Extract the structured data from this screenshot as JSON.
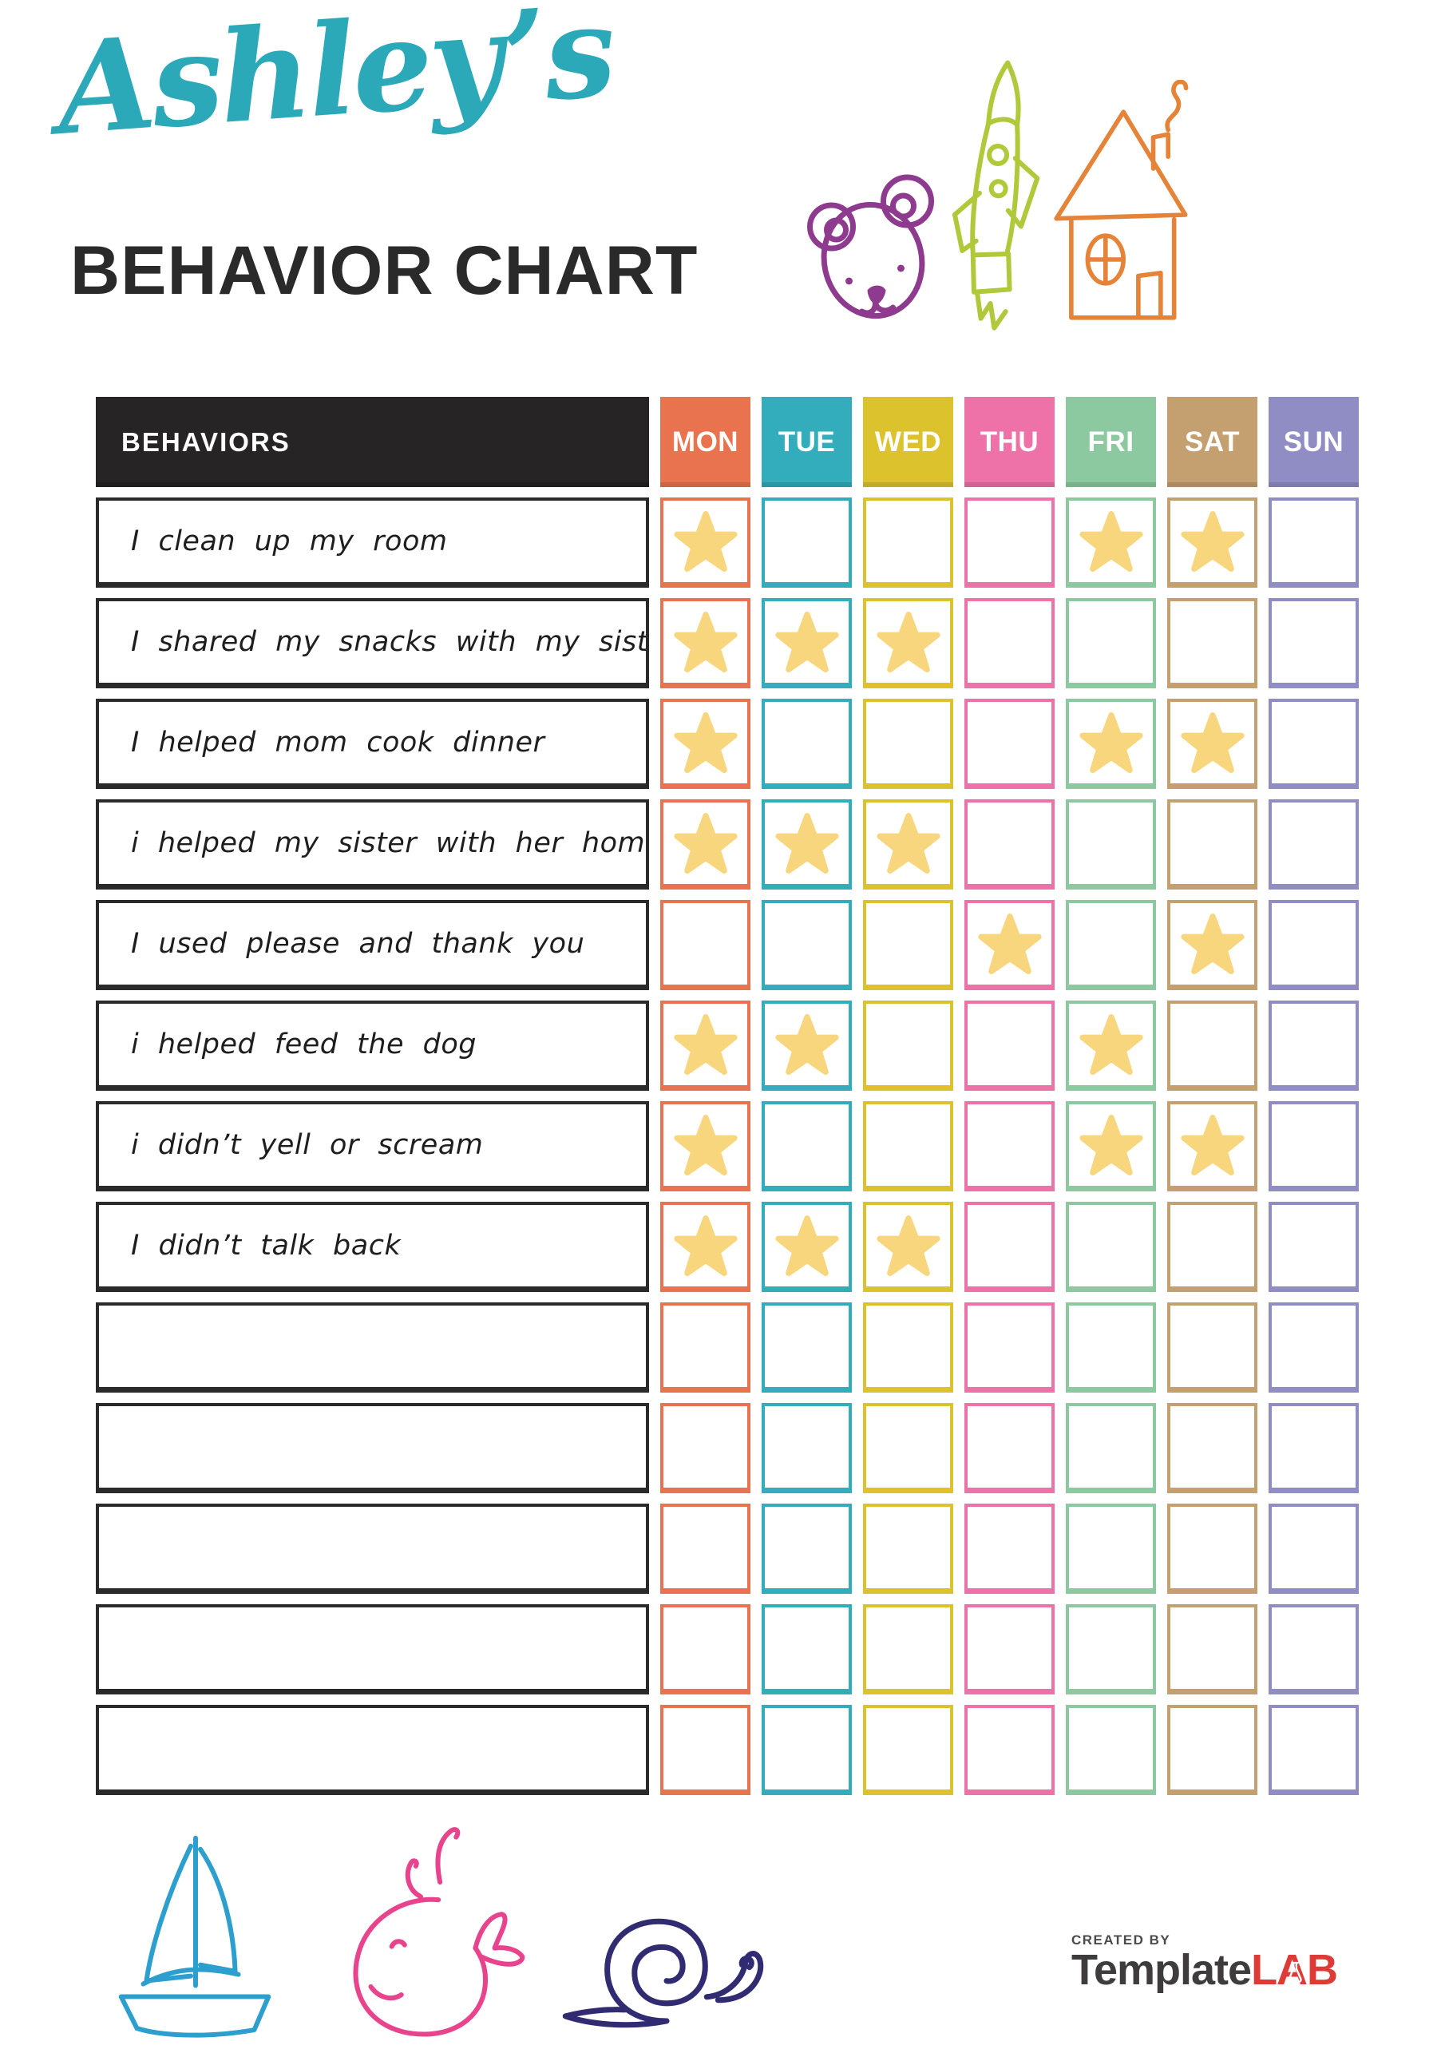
{
  "page": {
    "title_script": "Ashley’s",
    "title_main": "BEHAVIOR CHART"
  },
  "colors": {
    "title_teal": "#2BA9B8",
    "heading_dark": "#2B2A2A",
    "header_bg": "#262424",
    "star_gold": "#F7D67E",
    "behavior_border": "#2B2A2A"
  },
  "table": {
    "behaviors_header": "BEHAVIORS",
    "days": [
      {
        "label": "MON",
        "color": "#E8734E"
      },
      {
        "label": "TUE",
        "color": "#33ACBB"
      },
      {
        "label": "WED",
        "color": "#DCC32E"
      },
      {
        "label": "THU",
        "color": "#EE72A7"
      },
      {
        "label": "FRI",
        "color": "#8CC9A0"
      },
      {
        "label": "SAT",
        "color": "#C49F6F"
      },
      {
        "label": "SUN",
        "color": "#8F8DC4"
      }
    ],
    "rows": [
      {
        "behavior": "I clean up my room",
        "stars": [
          "MON",
          "FRI",
          "SAT"
        ]
      },
      {
        "behavior": "I shared my snacks with my sister",
        "stars": [
          "MON",
          "TUE",
          "WED"
        ]
      },
      {
        "behavior": "I helped mom cook dinner",
        "stars": [
          "MON",
          "FRI",
          "SAT"
        ]
      },
      {
        "behavior": "i helped my sister with her homework",
        "stars": [
          "MON",
          "TUE",
          "WED"
        ]
      },
      {
        "behavior": "I used please and thank you",
        "stars": [
          "THU",
          "SAT"
        ]
      },
      {
        "behavior": "i helped feed the dog",
        "stars": [
          "MON",
          "TUE",
          "FRI"
        ]
      },
      {
        "behavior": "i didn’t yell or scream",
        "stars": [
          "MON",
          "FRI",
          "SAT"
        ]
      },
      {
        "behavior": "I didn’t talk back",
        "stars": [
          "MON",
          "TUE",
          "WED"
        ]
      },
      {
        "behavior": "",
        "stars": []
      },
      {
        "behavior": "",
        "stars": []
      },
      {
        "behavior": "",
        "stars": []
      },
      {
        "behavior": "",
        "stars": []
      },
      {
        "behavior": "",
        "stars": []
      }
    ]
  },
  "doodles": {
    "bear_color": "#8E3A8E",
    "rocket_color": "#AFC93A",
    "house_color": "#E58438",
    "sailboat_color": "#2D9FCE",
    "whale_color": "#E8448E",
    "snail_color": "#312C72"
  },
  "footer": {
    "created_by": "CREATED BY",
    "brand_primary": "Template",
    "brand_accent": "LAB",
    "brand_accent_color": "#DE3A38"
  }
}
